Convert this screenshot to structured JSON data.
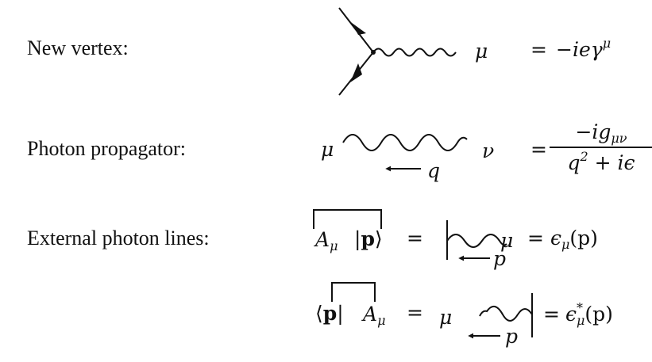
{
  "rows": {
    "vertex": {
      "label": "New vertex:",
      "index": "μ",
      "equals": "=",
      "rhs_base": "−ieγ",
      "rhs_sup": "μ"
    },
    "propagator": {
      "label": "Photon propagator:",
      "left_index": "μ",
      "right_index": "ν",
      "momentum": "q",
      "equals": "=",
      "num_base": "−ig",
      "num_sub": "μν",
      "den_base": "q",
      "den_sup": "2",
      "den_rest": " + iϵ"
    },
    "external": {
      "label": "External photon lines:",
      "incoming": {
        "field_base": "A",
        "field_sub": "μ",
        "ket_open": "|",
        "ket_p": "p",
        "ket_close": "⟩",
        "equals": "=",
        "momentum": "p",
        "index": "μ",
        "equals2": "=",
        "result_base": "ϵ",
        "result_sub": "μ",
        "result_arg": "(p)"
      },
      "outgoing": {
        "bra_open": "⟨",
        "bra_p": "p",
        "bra_close": "|",
        "field_base": "A",
        "field_sub": "μ",
        "equals": "=",
        "index": "μ",
        "momentum": "p",
        "equals2": "=",
        "result_base": "ϵ",
        "result_sup": "*",
        "result_sub": "μ",
        "result_arg": "(p)"
      }
    }
  }
}
